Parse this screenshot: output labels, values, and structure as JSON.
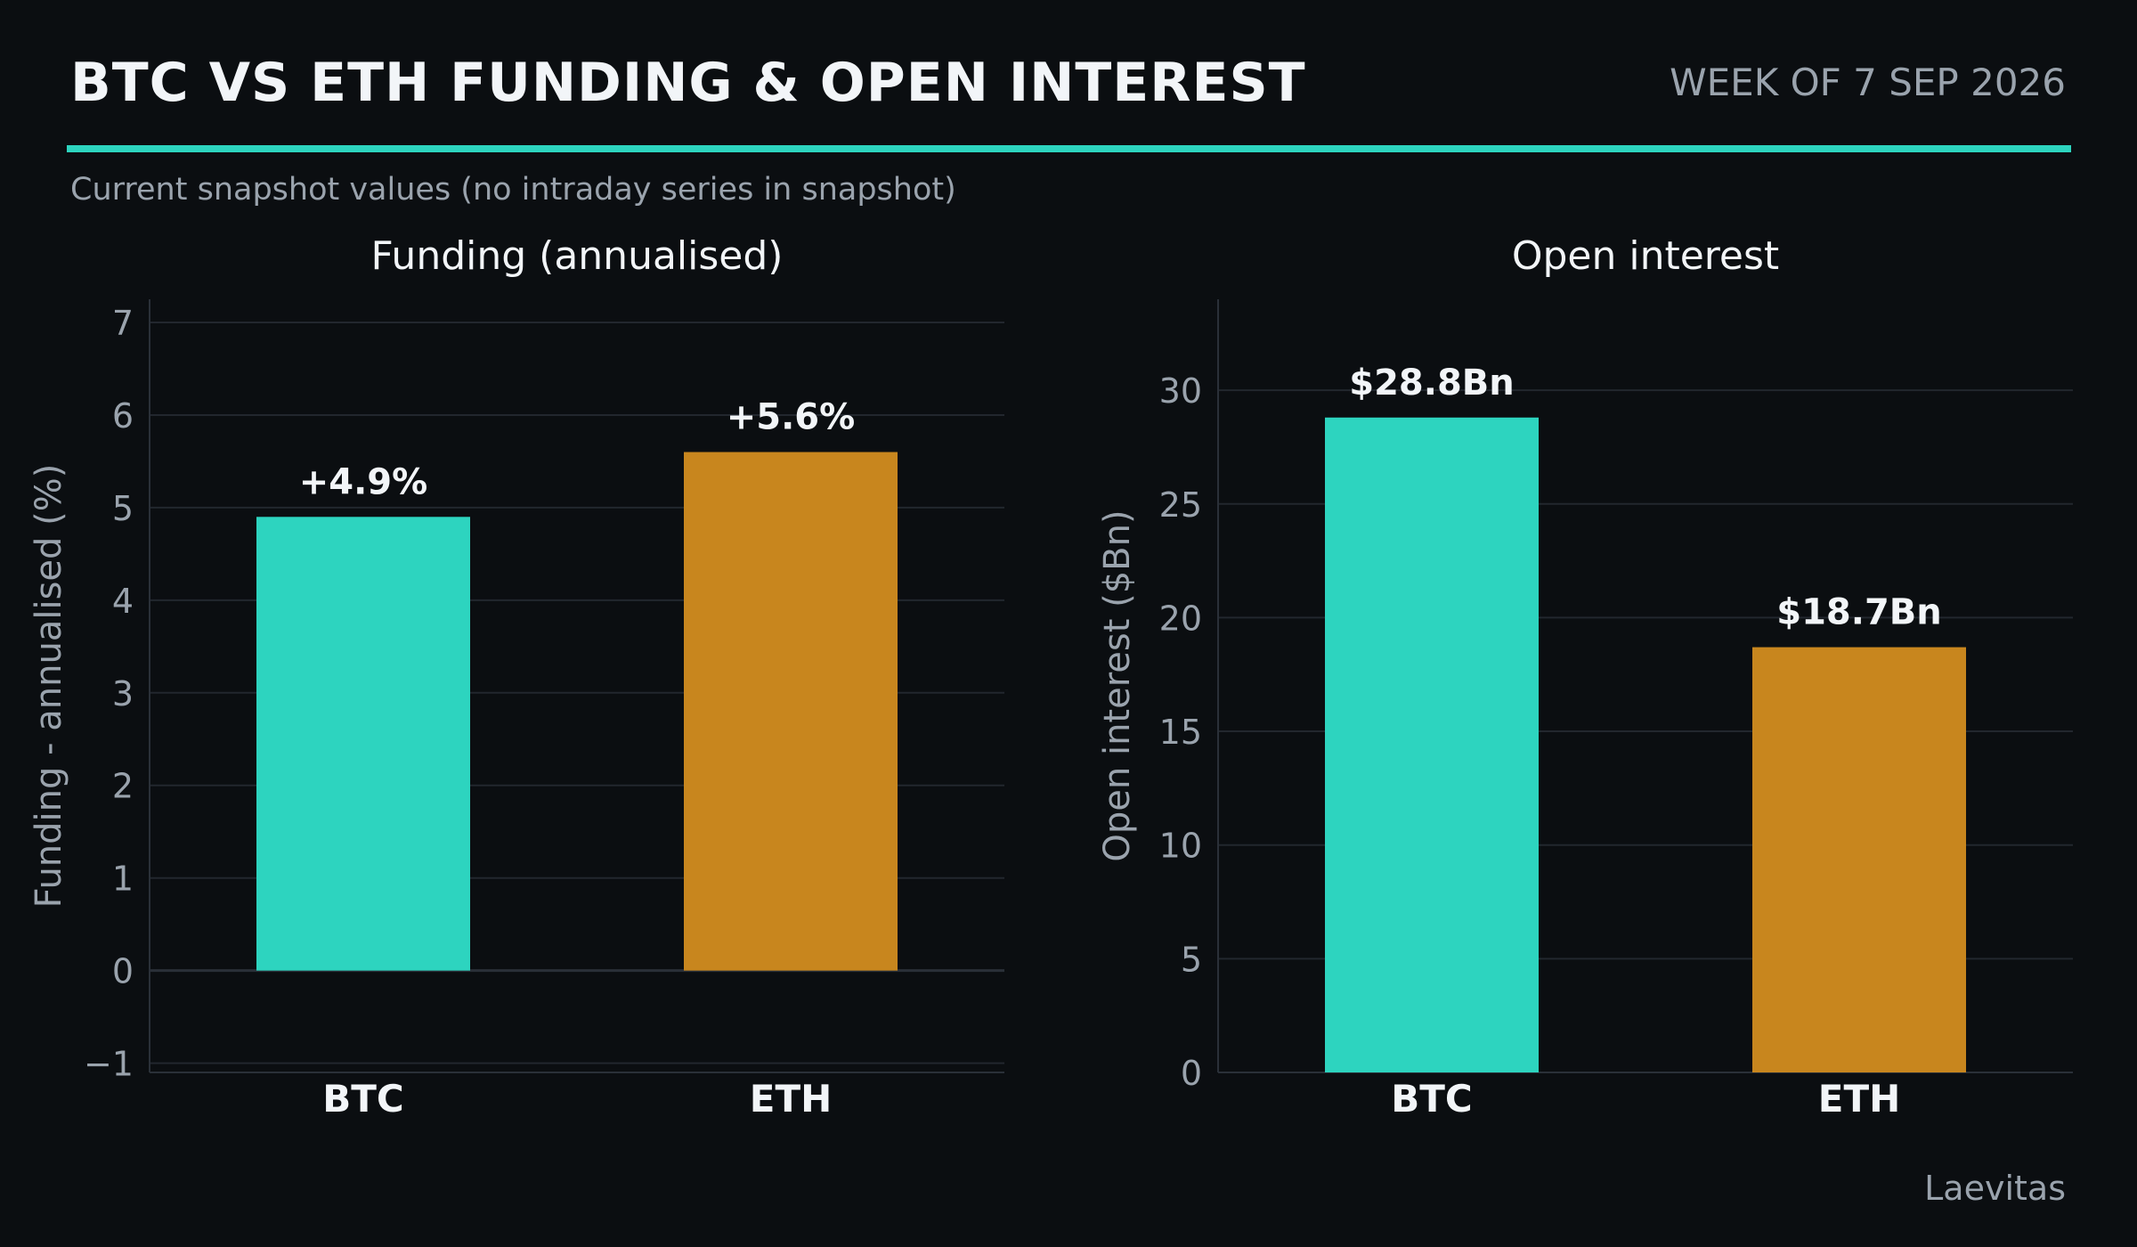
{
  "header": {
    "title": "BTC VS ETH FUNDING & OPEN INTEREST",
    "date_label": "WEEK OF 7 SEP 2026",
    "subtitle": "Current snapshot values (no intraday series in snapshot)"
  },
  "source_label": "Laevitas",
  "colors": {
    "background": "#0b0e11",
    "accent": "#2dd4bf",
    "btc": "#2dd4bf",
    "eth": "#c8861e",
    "grid": "#22272e",
    "muted_text": "#9aa3ad",
    "text": "#f2f5f8"
  },
  "chart_data": [
    {
      "type": "bar",
      "title": "Funding (annualised)",
      "ylabel": "Funding - annualised (%)",
      "xlabel": "",
      "categories": [
        "BTC",
        "ETH"
      ],
      "values": [
        4.9,
        5.6
      ],
      "value_labels": [
        "+4.9%",
        "+5.6%"
      ],
      "bar_colors": [
        "#2dd4bf",
        "#c8861e"
      ],
      "ylim": [
        -1.1,
        7.25
      ],
      "yticks": [
        -1,
        0,
        1,
        2,
        3,
        4,
        5,
        6,
        7
      ],
      "ytick_labels": [
        "−1",
        "0",
        "1",
        "2",
        "3",
        "4",
        "5",
        "6",
        "7"
      ],
      "grid": true,
      "legend": "none"
    },
    {
      "type": "bar",
      "title": "Open interest",
      "ylabel": "Open interest ($Bn)",
      "xlabel": "",
      "categories": [
        "BTC",
        "ETH"
      ],
      "values": [
        28.8,
        18.7
      ],
      "value_labels": [
        "$28.8Bn",
        "$18.7Bn"
      ],
      "bar_colors": [
        "#2dd4bf",
        "#c8861e"
      ],
      "ylim": [
        0,
        34
      ],
      "yticks": [
        0,
        5,
        10,
        15,
        20,
        25,
        30
      ],
      "ytick_labels": [
        "0",
        "5",
        "10",
        "15",
        "20",
        "25",
        "30"
      ],
      "grid": true,
      "legend": "none"
    }
  ]
}
